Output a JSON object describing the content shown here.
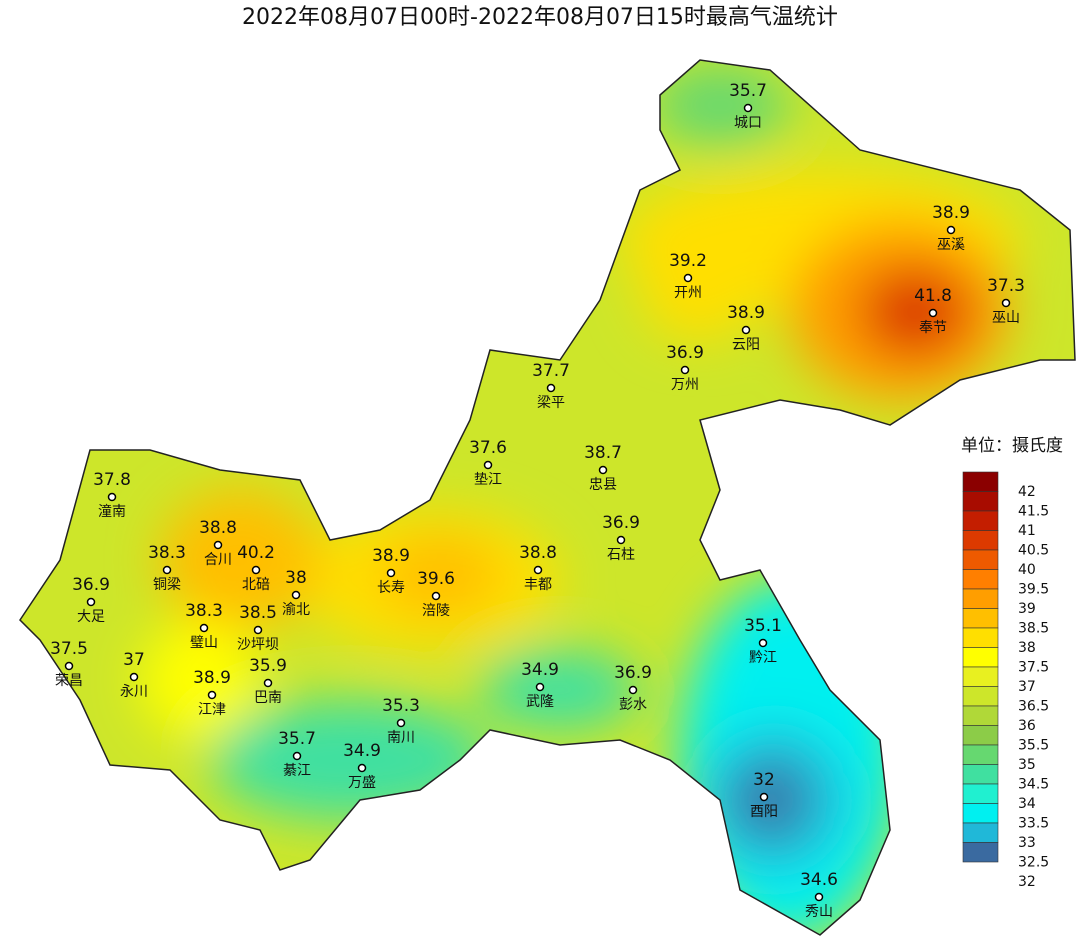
{
  "title": "2022年08月07日00时-2022年08月07日15时最高气温统计",
  "legend": {
    "title": "单位：摄氏度",
    "ticks": [
      42,
      41.5,
      41,
      40.5,
      40,
      39.5,
      39,
      38.5,
      38,
      37.5,
      37,
      36.5,
      36,
      35.5,
      35,
      34.5,
      34,
      33.5,
      33,
      32.5,
      32
    ],
    "colors": [
      "#8b0000",
      "#a80c00",
      "#c41e00",
      "#dc3a00",
      "#ee5a00",
      "#ff7f00",
      "#ff9e00",
      "#ffbf00",
      "#ffdf00",
      "#ffff00",
      "#e8f020",
      "#cde62a",
      "#b0d838",
      "#8ccc48",
      "#66d870",
      "#40e0a0",
      "#20f0d0",
      "#00f0f0",
      "#20b8d8",
      "#3a6aa0"
    ]
  },
  "stations": [
    {
      "name": "城口",
      "value": 35.7
    },
    {
      "name": "巫溪",
      "value": 38.9
    },
    {
      "name": "开州",
      "value": 39.2
    },
    {
      "name": "奉节",
      "value": 41.8
    },
    {
      "name": "巫山",
      "value": 37.3
    },
    {
      "name": "云阳",
      "value": 38.9
    },
    {
      "name": "万州",
      "value": 36.9
    },
    {
      "name": "梁平",
      "value": 37.7
    },
    {
      "name": "垫江",
      "value": 37.6
    },
    {
      "name": "忠县",
      "value": 38.7
    },
    {
      "name": "潼南",
      "value": 37.8
    },
    {
      "name": "合川",
      "value": 38.8
    },
    {
      "name": "石柱",
      "value": 36.9
    },
    {
      "name": "铜梁",
      "value": 38.3
    },
    {
      "name": "北碚",
      "value": 40.2
    },
    {
      "name": "渝北",
      "value": 38
    },
    {
      "name": "长寿",
      "value": 38.9
    },
    {
      "name": "涪陵",
      "value": 39.6
    },
    {
      "name": "丰都",
      "value": 38.8
    },
    {
      "name": "大足",
      "value": 36.9
    },
    {
      "name": "璧山",
      "value": 38.3
    },
    {
      "name": "沙坪坝",
      "value": 38.5
    },
    {
      "name": "黔江",
      "value": 35.1
    },
    {
      "name": "荣昌",
      "value": 37.5
    },
    {
      "name": "永川",
      "value": 37
    },
    {
      "name": "巴南",
      "value": 35.9
    },
    {
      "name": "武隆",
      "value": 34.9
    },
    {
      "name": "彭水",
      "value": 36.9
    },
    {
      "name": "江津",
      "value": 38.9
    },
    {
      "name": "南川",
      "value": 35.3
    },
    {
      "name": "綦江",
      "value": 35.7
    },
    {
      "name": "万盛",
      "value": 34.9
    },
    {
      "name": "酉阳",
      "value": 32
    },
    {
      "name": "秀山",
      "value": 34.6
    }
  ]
}
